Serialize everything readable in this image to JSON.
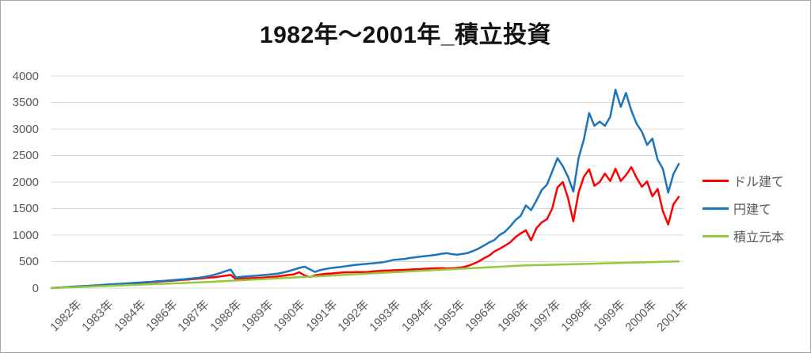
{
  "chart_data": {
    "type": "line",
    "title": "1982年～2001年_積立投資",
    "xlabel": "",
    "ylabel": "",
    "ylim": [
      0,
      4000
    ],
    "y_ticks": [
      0,
      500,
      1000,
      1500,
      2000,
      2500,
      3000,
      3500,
      4000
    ],
    "x_tick_labels": [
      "1982年",
      "1983年",
      "1984年",
      "1986年",
      "1987年",
      "1988年",
      "1989年",
      "1990年",
      "1991年",
      "1992年",
      "1993年",
      "1994年",
      "1995年",
      "1996年",
      "1996年",
      "1997年",
      "1998年",
      "1999年",
      "2000年",
      "2001年"
    ],
    "grid": "horizontal",
    "gridline_color": "#d9d9d9",
    "axis_text_color": "#595959",
    "legend_position": "right",
    "sampling_note": "values estimated from pixels at even intervals across the 1982-2001 span",
    "series": [
      {
        "name": "ドル建て",
        "color": "#ff0000",
        "values": [
          2,
          7,
          13,
          19,
          25,
          31,
          37,
          42,
          47,
          52,
          58,
          64,
          70,
          76,
          82,
          88,
          94,
          100,
          107,
          113,
          120,
          127,
          134,
          141,
          149,
          156,
          163,
          171,
          179,
          188,
          197,
          207,
          219,
          233,
          248,
          170,
          178,
          184,
          188,
          193,
          198,
          204,
          212,
          222,
          235,
          248,
          260,
          300,
          240,
          210,
          240,
          258,
          268,
          275,
          283,
          293,
          298,
          298,
          302,
          303,
          305,
          315,
          322,
          328,
          332,
          338,
          342,
          343,
          350,
          356,
          358,
          365,
          372,
          374,
          376,
          372,
          375,
          380,
          392,
          420,
          455,
          500,
          560,
          610,
          690,
          740,
          800,
          860,
          960,
          1030,
          1090,
          900,
          1130,
          1240,
          1300,
          1500,
          1900,
          2000,
          1700,
          1260,
          1800,
          2100,
          2240,
          1930,
          2000,
          2160,
          2020,
          2250,
          2020,
          2130,
          2280,
          2080,
          1910,
          2010,
          1730,
          1870,
          1450,
          1200,
          1580,
          1720
        ]
      },
      {
        "name": "円建て",
        "color": "#1b75bc",
        "values": [
          2,
          8,
          14,
          20,
          26,
          32,
          38,
          44,
          50,
          55,
          62,
          68,
          74,
          80,
          87,
          93,
          100,
          106,
          113,
          120,
          128,
          135,
          142,
          150,
          158,
          166,
          175,
          185,
          196,
          210,
          230,
          255,
          285,
          318,
          350,
          200,
          212,
          220,
          228,
          236,
          245,
          252,
          262,
          275,
          295,
          320,
          350,
          380,
          405,
          355,
          305,
          340,
          360,
          378,
          390,
          400,
          415,
          428,
          440,
          450,
          458,
          468,
          478,
          490,
          510,
          535,
          540,
          550,
          568,
          580,
          592,
          605,
          615,
          628,
          648,
          658,
          640,
          632,
          645,
          662,
          700,
          745,
          800,
          860,
          905,
          1000,
          1060,
          1160,
          1280,
          1360,
          1560,
          1470,
          1650,
          1850,
          1950,
          2200,
          2450,
          2300,
          2100,
          1820,
          2450,
          2800,
          3300,
          3060,
          3140,
          3060,
          3230,
          3740,
          3420,
          3680,
          3350,
          3100,
          2950,
          2700,
          2820,
          2420,
          2250,
          1800,
          2150,
          2340
        ]
      },
      {
        "name": "積立元本",
        "color": "#95c93d",
        "values": [
          0,
          115,
          270,
          425,
          505
        ]
      }
    ]
  }
}
